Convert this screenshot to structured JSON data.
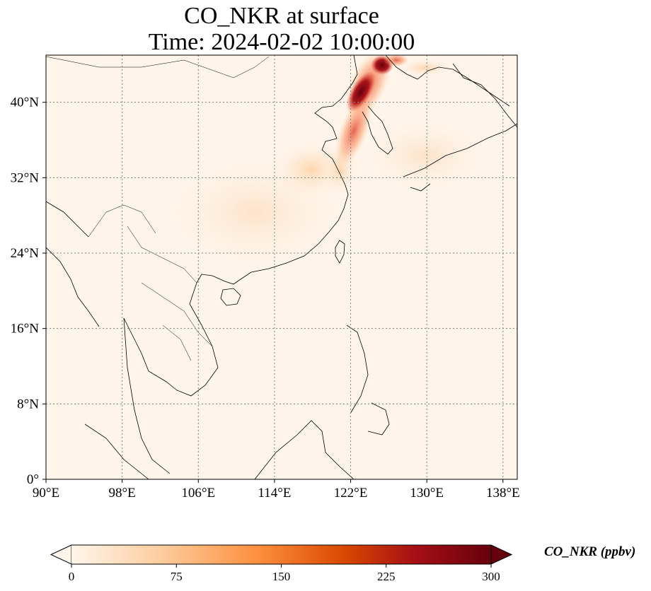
{
  "title": {
    "line1": "CO_NKR at surface",
    "line2": "Time: 2024-02-02 10:00:00"
  },
  "map": {
    "lon_range": [
      90,
      139.5
    ],
    "lat_range": [
      0,
      45
    ],
    "lon_ticks": [
      {
        "value": 90,
        "label": "90°E"
      },
      {
        "value": 98,
        "label": "98°E"
      },
      {
        "value": 106,
        "label": "106°E"
      },
      {
        "value": 114,
        "label": "114°E"
      },
      {
        "value": 122,
        "label": "122°E"
      },
      {
        "value": 130,
        "label": "130°E"
      },
      {
        "value": 138,
        "label": "138°E"
      }
    ],
    "lat_ticks": [
      {
        "value": 0,
        "label": "0°"
      },
      {
        "value": 8,
        "label": "8°N"
      },
      {
        "value": 16,
        "label": "16°N"
      },
      {
        "value": 24,
        "label": "24°N"
      },
      {
        "value": 32,
        "label": "32°N"
      },
      {
        "value": 40,
        "label": "40°N"
      }
    ],
    "gridlines": true,
    "background_color": "#fff5eb",
    "plume_color": "#a50f15"
  },
  "colorbar": {
    "label": "CO_NKR (ppbv)",
    "ticks": [
      {
        "value": 0,
        "label": "0"
      },
      {
        "value": 75,
        "label": "75"
      },
      {
        "value": 150,
        "label": "150"
      },
      {
        "value": 225,
        "label": "225"
      },
      {
        "value": 300,
        "label": "300"
      }
    ],
    "range": [
      0,
      300
    ],
    "extend": "both",
    "colormap": "OrRd",
    "stops": [
      "#fff5eb",
      "#fdd0a2",
      "#fd8d3c",
      "#d94801",
      "#a50f15",
      "#67000d"
    ]
  }
}
